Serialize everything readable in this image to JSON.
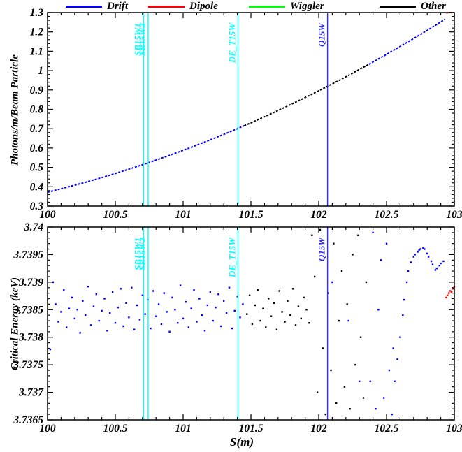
{
  "legend": {
    "items": [
      {
        "label": "Drift",
        "color": "#0000ff"
      },
      {
        "label": "Dipole",
        "color": "#ff0000"
      },
      {
        "label": "Wiggler",
        "color": "#00ff00"
      },
      {
        "label": "Other",
        "color": "#000000"
      }
    ]
  },
  "layout_text": {
    "xlabel": "S(m)"
  },
  "markers": [
    {
      "label": "SB15W1",
      "s": 100.709,
      "color": "#00ffff"
    },
    {
      "label": "SB15W2",
      "s": 100.742,
      "color": "#00ffff"
    },
    {
      "label": "DE_T15W",
      "s": 101.404,
      "color": "#00ffff"
    },
    {
      "label": "Q15W",
      "s": 102.065,
      "color": "#2a2aff"
    }
  ],
  "chart_data": [
    {
      "type": "line",
      "title": "",
      "ylabel": "Photons/m/Beam Particle",
      "xlim": [
        100,
        103
      ],
      "ylim": [
        0.3,
        1.3
      ],
      "x_ticks": {
        "values": [
          100,
          100.5,
          101,
          101.5,
          102,
          102.5,
          103
        ],
        "labels": [
          "100",
          "100.5",
          "101",
          "101.5",
          "102",
          "102.5",
          "103"
        ]
      },
      "x_minor_step": 0.1,
      "y_ticks": {
        "values": [
          0.3,
          0.4,
          0.5,
          0.6,
          0.7,
          0.8,
          0.9,
          1,
          1.1,
          1.2,
          1.3
        ],
        "labels": [
          "0.3",
          "0.4",
          "0.5",
          "0.6",
          "0.7",
          "0.8",
          "0.9",
          "1",
          "1.1",
          "1.2",
          "1.3"
        ]
      },
      "y_minor_step": 0.02,
      "grid": false,
      "legend_position": "top",
      "series": [
        {
          "name": "Drift",
          "color": "#0000ff",
          "points": [
            [
              100,
              0.372
            ],
            [
              100.1,
              0.3895
            ],
            [
              100.2,
              0.4079
            ],
            [
              100.3,
              0.4272
            ],
            [
              100.4,
              0.4474
            ],
            [
              100.5,
              0.4685
            ],
            [
              100.6,
              0.4906
            ],
            [
              100.7,
              0.5136
            ],
            [
              100.8,
              0.5375
            ],
            [
              100.9,
              0.5623
            ],
            [
              101,
              0.588
            ],
            [
              101.1,
              0.6147
            ],
            [
              101.2,
              0.6422
            ],
            [
              101.3,
              0.6707
            ],
            [
              101.4,
              0.7001
            ],
            [
              101.45,
              0.7152
            ]
          ]
        },
        {
          "name": "Other",
          "color": "#000000",
          "points": [
            [
              101.45,
              0.7152
            ],
            [
              101.5,
              0.7304
            ],
            [
              101.6,
              0.7617
            ],
            [
              101.7,
              0.7938
            ],
            [
              101.8,
              0.8269
            ],
            [
              101.9,
              0.8609
            ],
            [
              102,
              0.8958
            ],
            [
              102.1,
              0.9316
            ],
            [
              102.2,
              0.9684
            ],
            [
              102.3,
              1.006
            ],
            [
              102.37,
              1.033
            ]
          ]
        },
        {
          "name": "Drift",
          "color": "#0000ff",
          "points": [
            [
              102.37,
              1.033
            ],
            [
              102.4,
              1.0446
            ],
            [
              102.5,
              1.0841
            ],
            [
              102.6,
              1.1245
            ],
            [
              102.7,
              1.1659
            ],
            [
              102.8,
              1.2081
            ],
            [
              102.9,
              1.2513
            ],
            [
              102.93,
              1.2645
            ]
          ]
        },
        {
          "name": "Dipole",
          "color": "#ff0000",
          "points": [
            [
              102.94,
              1.297
            ],
            [
              102.96,
              1.3
            ],
            [
              103,
              1.3
            ]
          ]
        }
      ]
    },
    {
      "type": "scatter",
      "title": "",
      "ylabel": "Critical Energy (keV)",
      "xlabel": "S(m)",
      "xlim": [
        100,
        103
      ],
      "ylim": [
        3.7365,
        3.74
      ],
      "x_ticks": {
        "values": [
          100,
          100.5,
          101,
          101.5,
          102,
          102.5,
          103
        ],
        "labels": [
          "100",
          "100.5",
          "101",
          "101.5",
          "102",
          "102.5",
          "103"
        ]
      },
      "x_minor_step": 0.1,
      "y_ticks": {
        "values": [
          3.7365,
          3.737,
          3.7375,
          3.738,
          3.7385,
          3.739,
          3.7395,
          3.74
        ],
        "labels": [
          "3.7365",
          "3.737",
          "3.7375",
          "3.738",
          "3.7385",
          "3.739",
          "3.7395",
          "3.74"
        ]
      },
      "y_minor_step": 0.0001,
      "grid": false,
      "series": [
        {
          "name": "Drift",
          "color": "#0000ff",
          "points": [
            [
              100.02,
              3.73778
            ],
            [
              100.04,
              3.739
            ],
            [
              100.06,
              3.7386
            ],
            [
              100.08,
              3.73828
            ],
            [
              100.1,
              3.73846
            ],
            [
              100.12,
              3.73886
            ],
            [
              100.14,
              3.73818
            ],
            [
              100.16,
              3.73852
            ],
            [
              100.18,
              3.73872
            ],
            [
              100.2,
              3.73834
            ],
            [
              100.22,
              3.7385
            ],
            [
              100.24,
              3.73808
            ],
            [
              100.26,
              3.73866
            ],
            [
              100.28,
              3.7384
            ],
            [
              100.3,
              3.73892
            ],
            [
              100.32,
              3.73822
            ],
            [
              100.34,
              3.73856
            ],
            [
              100.36,
              3.73878
            ],
            [
              100.38,
              3.7383
            ],
            [
              100.4,
              3.73848
            ],
            [
              100.42,
              3.7387
            ],
            [
              100.44,
              3.73812
            ],
            [
              100.46,
              3.73844
            ],
            [
              100.48,
              3.73882
            ],
            [
              100.5,
              3.73826
            ],
            [
              100.52,
              3.73854
            ],
            [
              100.54,
              3.73888
            ],
            [
              100.56,
              3.7382
            ],
            [
              100.58,
              3.73862
            ],
            [
              100.6,
              3.73836
            ],
            [
              100.62,
              3.7389
            ],
            [
              100.64,
              3.73814
            ],
            [
              100.66,
              3.73858
            ],
            [
              100.68,
              3.73832
            ],
            [
              100.7,
              3.73876
            ],
            [
              100.72,
              3.73842
            ],
            [
              100.74,
              3.73868
            ],
            [
              100.76,
              3.73816
            ],
            [
              100.78,
              3.73884
            ],
            [
              100.8,
              3.73838
            ],
            [
              100.82,
              3.7386
            ],
            [
              100.84,
              3.73824
            ],
            [
              100.86,
              3.7388
            ],
            [
              100.88,
              3.73846
            ],
            [
              100.9,
              3.7381
            ],
            [
              100.92,
              3.73872
            ],
            [
              100.94,
              3.7385
            ],
            [
              100.96,
              3.73826
            ],
            [
              100.98,
              3.73894
            ],
            [
              101,
              3.73834
            ],
            [
              101.02,
              3.73864
            ],
            [
              101.04,
              3.73818
            ],
            [
              101.06,
              3.73852
            ],
            [
              101.08,
              3.73886
            ],
            [
              101.1,
              3.73828
            ],
            [
              101.12,
              3.7387
            ],
            [
              101.14,
              3.7384
            ],
            [
              101.16,
              3.73812
            ],
            [
              101.18,
              3.73858
            ],
            [
              101.2,
              3.73882
            ],
            [
              101.22,
              3.7383
            ],
            [
              101.24,
              3.73854
            ],
            [
              101.26,
              3.73878
            ],
            [
              101.28,
              3.7382
            ],
            [
              101.3,
              3.73866
            ],
            [
              101.32,
              3.73844
            ],
            [
              101.34,
              3.7389
            ],
            [
              101.36,
              3.73816
            ],
            [
              101.38,
              3.73848
            ],
            [
              101.4,
              3.73874
            ],
            [
              101.42,
              3.73836
            ],
            [
              101.44,
              3.7386
            ]
          ]
        },
        {
          "name": "Other",
          "color": "#000000",
          "points": [
            [
              101.47,
              3.73842
            ],
            [
              101.49,
              3.73876
            ],
            [
              101.51,
              3.73824
            ],
            [
              101.53,
              3.73858
            ],
            [
              101.55,
              3.73886
            ],
            [
              101.57,
              3.7383
            ],
            [
              101.59,
              3.73852
            ],
            [
              101.61,
              3.73818
            ],
            [
              101.63,
              3.7387
            ],
            [
              101.65,
              3.73838
            ],
            [
              101.67,
              3.73862
            ],
            [
              101.69,
              3.73814
            ],
            [
              101.71,
              3.73884
            ],
            [
              101.73,
              3.73846
            ],
            [
              101.75,
              3.73828
            ],
            [
              101.77,
              3.73866
            ],
            [
              101.79,
              3.7384
            ],
            [
              101.81,
              3.73888
            ],
            [
              101.83,
              3.73822
            ],
            [
              101.85,
              3.73856
            ],
            [
              101.87,
              3.73834
            ],
            [
              101.89,
              3.73872
            ],
            [
              101.91,
              3.7385
            ],
            [
              101.93,
              3.73826
            ],
            [
              101.95,
              3.73985
            ],
            [
              101.97,
              3.7391
            ],
            [
              101.99,
              3.737
            ],
            [
              102.01,
              3.73995
            ],
            [
              102.03,
              3.7378
            ],
            [
              102.05,
              3.7366
            ],
            [
              102.07,
              3.7388
            ],
            [
              102.09,
              3.7374
            ],
            [
              102.11,
              3.7397
            ],
            [
              102.13,
              3.7368
            ],
            [
              102.15,
              3.7383
            ],
            [
              102.17,
              3.7392
            ],
            [
              102.19,
              3.7371
            ],
            [
              102.21,
              3.7386
            ],
            [
              102.23,
              3.7367
            ],
            [
              102.25,
              3.7395
            ],
            [
              102.27,
              3.7375
            ],
            [
              102.29,
              3.73985
            ],
            [
              102.31,
              3.738
            ],
            [
              102.33,
              3.7369
            ],
            [
              102.35,
              3.739
            ]
          ]
        },
        {
          "name": "Drift",
          "color": "#0000ff",
          "points": [
            [
              102.1,
              3.739
            ],
            [
              102.22,
              3.7383
            ],
            [
              102.3,
              3.7372
            ],
            [
              102.38,
              3.7372
            ],
            [
              102.4,
              3.7399
            ],
            [
              102.42,
              3.7367
            ],
            [
              102.44,
              3.7385
            ],
            [
              102.46,
              3.7394
            ],
            [
              102.48,
              3.7369
            ],
            [
              102.5,
              3.7397
            ],
            [
              102.52,
              3.7374
            ],
            [
              102.54,
              3.7366
            ],
            [
              102.55,
              3.7378
            ],
            [
              102.56,
              3.7372
            ],
            [
              102.58,
              3.7376
            ],
            [
              102.6,
              3.738
            ],
            [
              102.62,
              3.7384
            ],
            [
              102.63,
              3.73868
            ],
            [
              102.65,
              3.739
            ],
            [
              102.66,
              3.7392
            ],
            [
              102.68,
              3.73936
            ],
            [
              102.7,
              3.73946
            ],
            [
              102.71,
              3.7395
            ],
            [
              102.73,
              3.73955
            ],
            [
              102.74,
              3.73958
            ],
            [
              102.75,
              3.7396
            ],
            [
              102.77,
              3.73962
            ],
            [
              102.78,
              3.7396
            ],
            [
              102.8,
              3.73952
            ],
            [
              102.81,
              3.73946
            ],
            [
              102.83,
              3.73938
            ],
            [
              102.84,
              3.73932
            ],
            [
              102.86,
              3.73922
            ],
            [
              102.87,
              3.73925
            ],
            [
              102.89,
              3.7393
            ],
            [
              102.9,
              3.73934
            ],
            [
              102.92,
              3.73938
            ]
          ]
        },
        {
          "name": "Dipole",
          "color": "#ff0000",
          "points": [
            [
              102.94,
              3.73872
            ],
            [
              102.95,
              3.73876
            ],
            [
              102.96,
              3.7388
            ],
            [
              102.97,
              3.73884
            ],
            [
              102.98,
              3.73882
            ],
            [
              102.99,
              3.73888
            ],
            [
              103,
              3.73892
            ]
          ]
        }
      ]
    }
  ]
}
